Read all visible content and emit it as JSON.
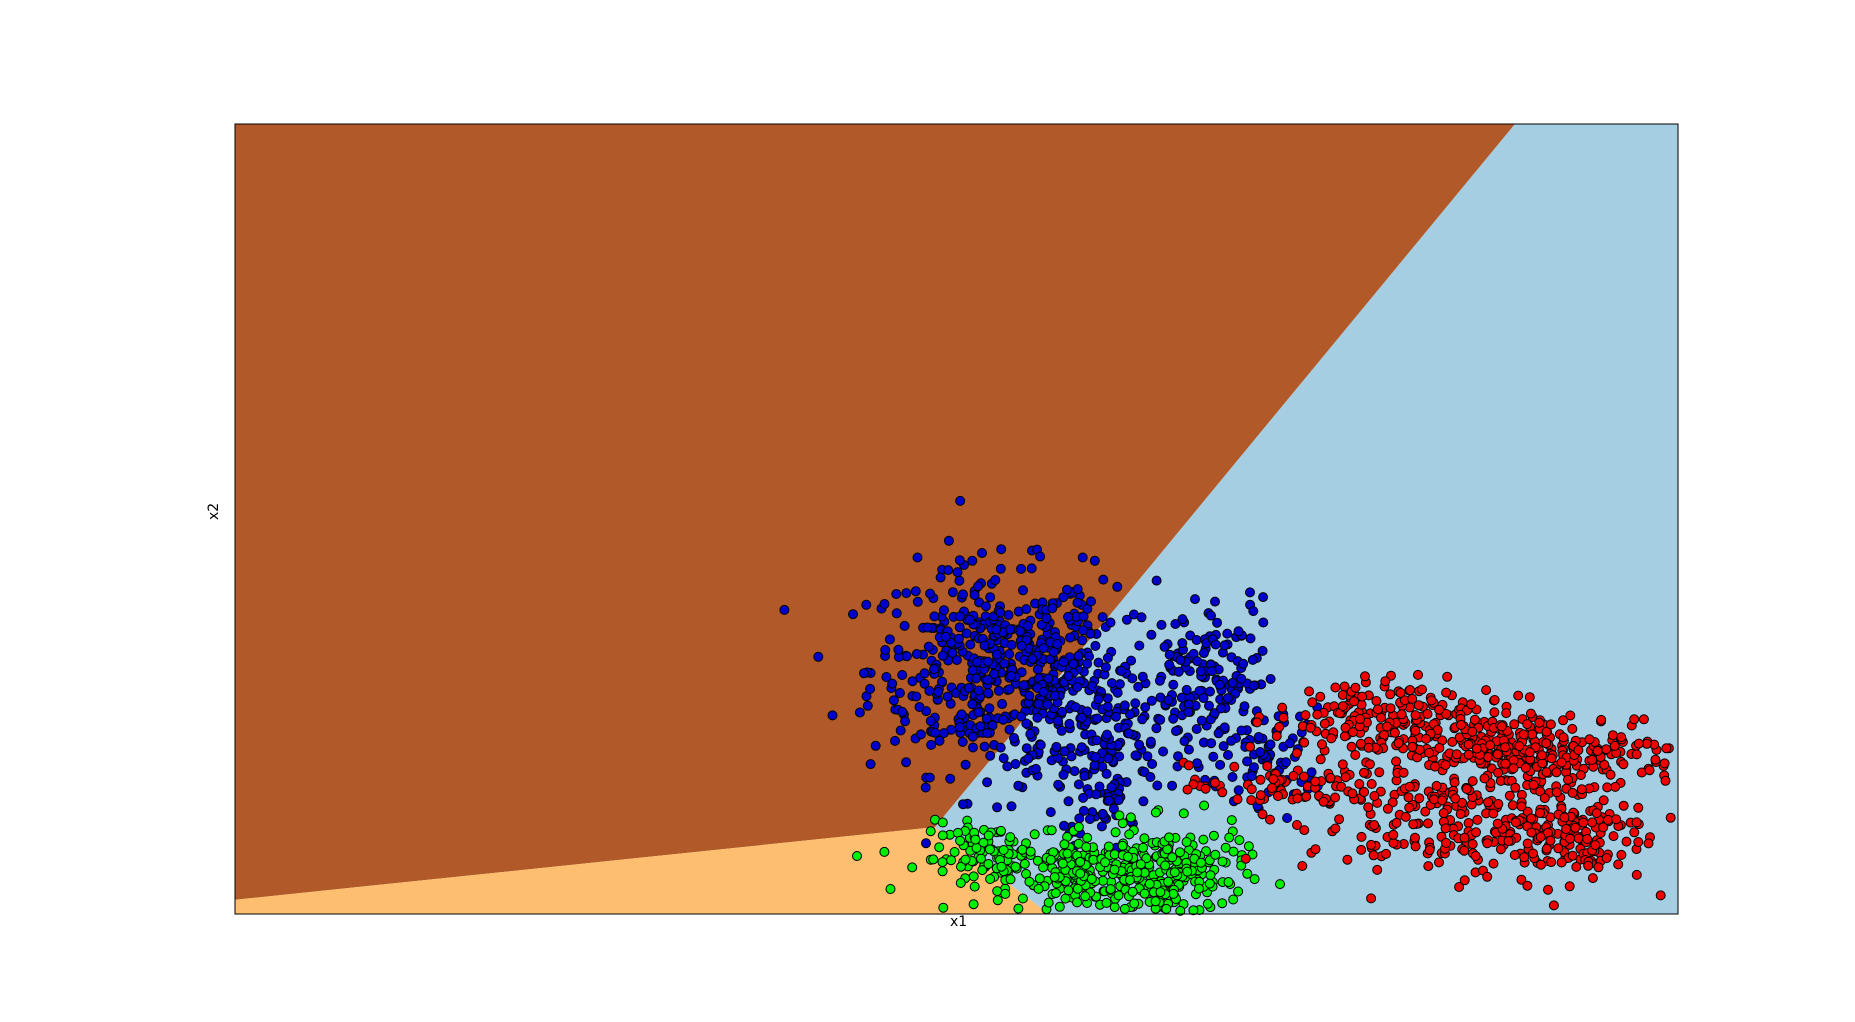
{
  "chart_data": {
    "type": "scatter",
    "title": "",
    "xlabel": "x1",
    "ylabel": "x2",
    "xlim": [
      0,
      100
    ],
    "ylim": [
      0,
      100
    ],
    "grid": false,
    "ticks_visible": false,
    "legend": "none",
    "decision_regions": [
      {
        "class": "light-blue",
        "color": "#a6cee3",
        "polygon": [
          [
            48.5,
            11
          ],
          [
            88.7,
            100
          ],
          [
            100,
            100
          ],
          [
            100,
            0
          ],
          [
            56.4,
            0
          ]
        ]
      },
      {
        "class": "brown",
        "color": "#b15928",
        "polygon": [
          [
            0,
            100
          ],
          [
            88.7,
            100
          ],
          [
            48.5,
            11
          ],
          [
            0,
            1.8
          ]
        ]
      },
      {
        "class": "orange",
        "color": "#fdbf6f",
        "polygon": [
          [
            0,
            0
          ],
          [
            56.4,
            0
          ],
          [
            48.5,
            11
          ],
          [
            0,
            1.8
          ]
        ]
      }
    ],
    "series": [
      {
        "color": "#0000cc",
        "clusters": [
          {
            "cx": 52.0,
            "cy": 31,
            "sx": 4.0,
            "sy": 6.5,
            "n": 420
          },
          {
            "cx": 57.8,
            "cy": 28,
            "sx": 3.0,
            "sy": 7.0,
            "n": 200
          },
          {
            "cx": 60.5,
            "cy": 20,
            "sx": 1.6,
            "sy": 6.0,
            "n": 110
          },
          {
            "cx": 65.5,
            "cy": 27,
            "sx": 1.6,
            "sy": 5.5,
            "n": 90
          },
          {
            "cx": 69.0,
            "cy": 30,
            "sx": 1.6,
            "sy": 5.0,
            "n": 80
          },
          {
            "cx": 72.0,
            "cy": 20,
            "sx": 1.8,
            "sy": 3.0,
            "n": 60
          }
        ]
      },
      {
        "color": "#00ee00",
        "clusters": [
          {
            "cx": 52.5,
            "cy": 7,
            "sx": 2.5,
            "sy": 2.2,
            "n": 120
          },
          {
            "cx": 59.0,
            "cy": 5,
            "sx": 2.2,
            "sy": 2.5,
            "n": 170
          },
          {
            "cx": 65.0,
            "cy": 5,
            "sx": 2.5,
            "sy": 3.0,
            "n": 200
          }
        ]
      },
      {
        "color": "#ee0000",
        "clusters": [
          {
            "cx": 78.0,
            "cy": 25,
            "sx": 3.0,
            "sy": 2.5,
            "n": 120
          },
          {
            "cx": 85.0,
            "cy": 22,
            "sx": 4.0,
            "sy": 3.0,
            "n": 190
          },
          {
            "cx": 92.0,
            "cy": 20,
            "sx": 4.5,
            "sy": 3.0,
            "n": 210
          },
          {
            "cx": 84.0,
            "cy": 11,
            "sx": 5.0,
            "sy": 3.0,
            "n": 180
          },
          {
            "cx": 92.0,
            "cy": 10,
            "sx": 3.0,
            "sy": 3.0,
            "n": 140
          },
          {
            "cx": 73.0,
            "cy": 16,
            "sx": 3.5,
            "sy": 1.5,
            "n": 70
          }
        ]
      }
    ]
  }
}
